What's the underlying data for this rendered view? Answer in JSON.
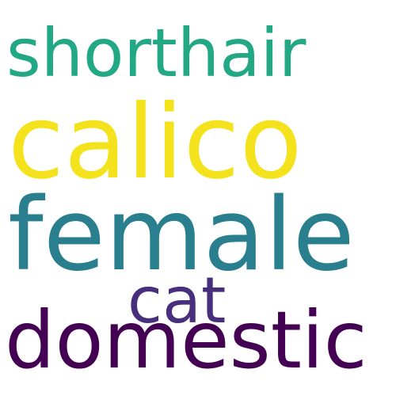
{
  "words": [
    {
      "text": "shorthair",
      "color": "#22a884"
    },
    {
      "text": "calico",
      "color": "#f4e21c"
    },
    {
      "text": "female",
      "color": "#2a7f8e"
    },
    {
      "text": "cat",
      "color": "#472f7d"
    },
    {
      "text": "domestic",
      "color": "#440154"
    }
  ],
  "background": "#ffffff"
}
